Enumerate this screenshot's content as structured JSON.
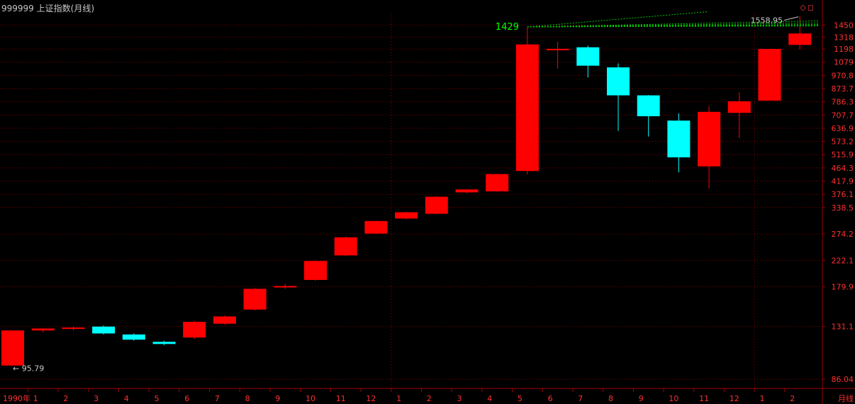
{
  "header": {
    "symbol": "999999",
    "title": "上证指数(月线)",
    "icon_names": [
      "diamond-icon",
      "square-icon"
    ]
  },
  "colors": {
    "background": "#000000",
    "up": "#ff0000",
    "down": "#00ffff",
    "grid": "#8b0000",
    "axis_text": "#ff3030",
    "annotation": "#00ff00",
    "trend_lines": "#00cc00"
  },
  "chart_data": {
    "type": "candlestick",
    "y_scale": "log",
    "ylim": [
      80,
      1600
    ],
    "y_ticks": [
      "1450",
      "1318",
      "1198",
      "1079",
      "970.8",
      "873.7",
      "786.3",
      "707.7",
      "636.9",
      "573.2",
      "515.9",
      "464.3",
      "417.9",
      "376.1",
      "338.5",
      "274.2",
      "222.1",
      "179.9",
      "131.1",
      "86.04"
    ],
    "x_labels": [
      "1990年",
      "1",
      "2",
      "3",
      "4",
      "5",
      "6",
      "7",
      "8",
      "9",
      "10",
      "11",
      "12",
      "1",
      "2",
      "3",
      "4",
      "5",
      "6",
      "7",
      "8",
      "9",
      "10",
      "11",
      "12",
      "1",
      "2"
    ],
    "axis_period_label": "月线",
    "candles": [
      {
        "o": 96,
        "h": 127,
        "l": 96,
        "c": 127
      },
      {
        "o": 127,
        "h": 129,
        "l": 125,
        "c": 129
      },
      {
        "o": 129,
        "h": 131,
        "l": 127,
        "c": 130
      },
      {
        "o": 131,
        "h": 132,
        "l": 123,
        "c": 124
      },
      {
        "o": 123,
        "h": 124,
        "l": 117,
        "c": 118
      },
      {
        "o": 116,
        "h": 117,
        "l": 113,
        "c": 114
      },
      {
        "o": 120,
        "h": 137,
        "l": 119,
        "c": 136
      },
      {
        "o": 134,
        "h": 143,
        "l": 133,
        "c": 142
      },
      {
        "o": 150,
        "h": 178,
        "l": 149,
        "c": 177
      },
      {
        "o": 179,
        "h": 184,
        "l": 177,
        "c": 181
      },
      {
        "o": 190,
        "h": 222,
        "l": 189,
        "c": 221
      },
      {
        "o": 231,
        "h": 268,
        "l": 230,
        "c": 267
      },
      {
        "o": 275,
        "h": 305,
        "l": 274,
        "c": 304
      },
      {
        "o": 310,
        "h": 327,
        "l": 308,
        "c": 326
      },
      {
        "o": 322,
        "h": 370,
        "l": 321,
        "c": 369
      },
      {
        "o": 382,
        "h": 392,
        "l": 380,
        "c": 391
      },
      {
        "o": 385,
        "h": 443,
        "l": 384,
        "c": 442
      },
      {
        "o": 453,
        "h": 1429,
        "l": 441,
        "c": 1243
      },
      {
        "o": 1188,
        "h": 1270,
        "l": 1025,
        "c": 1200
      },
      {
        "o": 1215,
        "h": 1230,
        "l": 955,
        "c": 1049
      },
      {
        "o": 1035,
        "h": 1069,
        "l": 624,
        "c": 828
      },
      {
        "o": 828,
        "h": 830,
        "l": 596,
        "c": 701
      },
      {
        "o": 677,
        "h": 717,
        "l": 448,
        "c": 505
      },
      {
        "o": 470,
        "h": 760,
        "l": 394,
        "c": 726
      },
      {
        "o": 720,
        "h": 848,
        "l": 589,
        "c": 790
      },
      {
        "o": 794,
        "h": 1200,
        "l": 794,
        "c": 1199
      },
      {
        "o": 1238,
        "h": 1558.95,
        "l": 1194,
        "c": 1356
      }
    ],
    "annotations": {
      "high_1": "1429",
      "high_2": "1558.95",
      "low": "95.79"
    }
  }
}
